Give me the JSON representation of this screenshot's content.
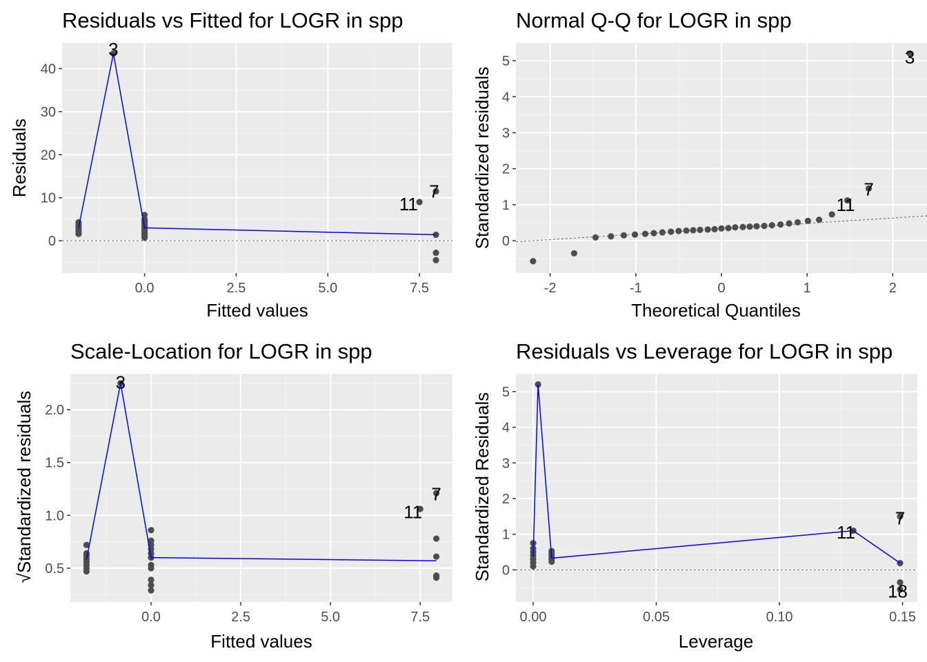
{
  "chart_data": [
    {
      "id": "p1",
      "type": "scatter",
      "title": "Residuals vs Fitted for LOGR in spp",
      "xlabel": "Fitted values",
      "ylabel": "Residuals",
      "xlim": [
        -2.25,
        8.4
      ],
      "ylim": [
        -7.5,
        46
      ],
      "xticks": [
        0,
        2.5,
        5,
        7.5
      ],
      "xtick_labels": [
        "0.0",
        "2.5",
        "5.0",
        "7.5"
      ],
      "yticks": [
        0,
        10,
        20,
        30,
        40
      ],
      "ytick_labels": [
        "0",
        "10",
        "20",
        "30",
        "40"
      ],
      "hline": 0,
      "grid": true,
      "points": [
        [
          -1.8,
          1.6
        ],
        [
          -1.8,
          2.2
        ],
        [
          -1.8,
          2.8
        ],
        [
          -1.8,
          3.3
        ],
        [
          -1.8,
          3.8
        ],
        [
          -1.8,
          4.3
        ],
        [
          -0.85,
          43.5
        ],
        [
          0.0,
          0.7
        ],
        [
          0.0,
          1.2
        ],
        [
          0.0,
          1.7
        ],
        [
          0.0,
          2.2
        ],
        [
          0.0,
          2.6
        ],
        [
          0.0,
          3.1
        ],
        [
          0.0,
          3.5
        ],
        [
          0.0,
          4.0
        ],
        [
          0.0,
          4.5
        ],
        [
          0.0,
          5.0
        ],
        [
          0.0,
          6.0
        ],
        [
          7.5,
          9.0
        ],
        [
          7.95,
          11.5
        ],
        [
          7.95,
          1.4
        ],
        [
          7.95,
          -2.8
        ],
        [
          7.95,
          -4.5
        ]
      ],
      "smooth": [
        [
          -1.8,
          3.0
        ],
        [
          -0.85,
          43.5
        ],
        [
          0.0,
          3.0
        ],
        [
          7.95,
          1.4
        ]
      ],
      "labels": [
        {
          "text": "3",
          "x": -0.85,
          "y": 44.5
        },
        {
          "text": "11",
          "x": 7.2,
          "y": 8.5
        },
        {
          "text": "7",
          "x": 7.9,
          "y": 11.5
        }
      ]
    },
    {
      "id": "p2",
      "type": "scatter",
      "title": "Normal Q-Q for LOGR in spp",
      "xlabel": "Theoretical Quantiles",
      "ylabel": "Standardized residuals",
      "xlim": [
        -2.4,
        2.4
      ],
      "ylim": [
        -0.9,
        5.5
      ],
      "xticks": [
        -2,
        -1,
        0,
        1,
        2
      ],
      "xtick_labels": [
        "-2",
        "-1",
        "0",
        "1",
        "2"
      ],
      "yticks": [
        0,
        1,
        2,
        3,
        4,
        5
      ],
      "ytick_labels": [
        "0",
        "1",
        "2",
        "3",
        "4",
        "5"
      ],
      "refline": [
        [
          -2.4,
          -0.03
        ],
        [
          2.4,
          0.69
        ]
      ],
      "grid": true,
      "points": [
        [
          -2.2,
          -0.57
        ],
        [
          -1.72,
          -0.35
        ],
        [
          -1.47,
          0.09
        ],
        [
          -1.29,
          0.12
        ],
        [
          -1.14,
          0.15
        ],
        [
          -1.01,
          0.17
        ],
        [
          -0.89,
          0.19
        ],
        [
          -0.79,
          0.21
        ],
        [
          -0.69,
          0.23
        ],
        [
          -0.59,
          0.25
        ],
        [
          -0.5,
          0.27
        ],
        [
          -0.41,
          0.28
        ],
        [
          -0.33,
          0.29
        ],
        [
          -0.25,
          0.3
        ],
        [
          -0.16,
          0.31
        ],
        [
          -0.08,
          0.32
        ],
        [
          0.0,
          0.34
        ],
        [
          0.08,
          0.35
        ],
        [
          0.16,
          0.37
        ],
        [
          0.25,
          0.38
        ],
        [
          0.33,
          0.39
        ],
        [
          0.41,
          0.4
        ],
        [
          0.5,
          0.41
        ],
        [
          0.59,
          0.43
        ],
        [
          0.69,
          0.45
        ],
        [
          0.79,
          0.48
        ],
        [
          0.89,
          0.51
        ],
        [
          1.01,
          0.55
        ],
        [
          1.14,
          0.58
        ],
        [
          1.29,
          0.73
        ],
        [
          1.47,
          1.12
        ],
        [
          1.72,
          1.45
        ],
        [
          2.2,
          5.2
        ]
      ],
      "labels": [
        {
          "text": "3",
          "x": 2.2,
          "y": 5.1
        },
        {
          "text": "11",
          "x": 1.45,
          "y": 1.0
        },
        {
          "text": "7",
          "x": 1.72,
          "y": 1.43
        }
      ]
    },
    {
      "id": "p3",
      "type": "scatter",
      "title": "Scale-Location for LOGR in spp",
      "xlabel": "Fitted values",
      "ylabel": "√Standardized residuals",
      "xlim": [
        -2.25,
        8.4
      ],
      "ylim": [
        0.18,
        2.34
      ],
      "xticks": [
        0,
        2.5,
        5,
        7.5
      ],
      "xtick_labels": [
        "0.0",
        "2.5",
        "5.0",
        "7.5"
      ],
      "yticks": [
        0.5,
        1.0,
        1.5,
        2.0
      ],
      "ytick_labels": [
        "0.5",
        "1.0",
        "1.5",
        "2.0"
      ],
      "grid": true,
      "points": [
        [
          -1.8,
          0.47
        ],
        [
          -1.8,
          0.5
        ],
        [
          -1.8,
          0.53
        ],
        [
          -1.8,
          0.56
        ],
        [
          -1.8,
          0.59
        ],
        [
          -1.8,
          0.62
        ],
        [
          -1.8,
          0.64
        ],
        [
          -1.8,
          0.72
        ],
        [
          -0.85,
          2.25
        ],
        [
          0.0,
          0.29
        ],
        [
          0.0,
          0.34
        ],
        [
          0.0,
          0.39
        ],
        [
          0.0,
          0.5
        ],
        [
          0.0,
          0.53
        ],
        [
          0.0,
          0.6
        ],
        [
          0.0,
          0.64
        ],
        [
          0.0,
          0.68
        ],
        [
          0.0,
          0.72
        ],
        [
          0.0,
          0.76
        ],
        [
          0.0,
          0.86
        ],
        [
          7.5,
          1.06
        ],
        [
          7.95,
          1.21
        ],
        [
          7.95,
          0.78
        ],
        [
          7.95,
          0.61
        ],
        [
          7.95,
          0.43
        ],
        [
          7.95,
          0.41
        ]
      ],
      "smooth": [
        [
          -1.8,
          0.58
        ],
        [
          -0.85,
          2.25
        ],
        [
          0.0,
          0.6
        ],
        [
          7.95,
          0.57
        ]
      ],
      "labels": [
        {
          "text": "3",
          "x": -0.85,
          "y": 2.26
        },
        {
          "text": "11",
          "x": 7.3,
          "y": 1.03
        },
        {
          "text": "7",
          "x": 7.95,
          "y": 1.2
        }
      ]
    },
    {
      "id": "p4",
      "type": "scatter",
      "title": "Residuals vs Leverage for LOGR in spp",
      "xlabel": "Leverage",
      "ylabel": "Standardized Residuals",
      "xlim": [
        -0.007,
        0.156
      ],
      "ylim": [
        -0.9,
        5.5
      ],
      "xticks": [
        0,
        0.05,
        0.1,
        0.15
      ],
      "xtick_labels": [
        "0.00",
        "0.05",
        "0.10",
        "0.15"
      ],
      "yticks": [
        0,
        1,
        2,
        3,
        4,
        5
      ],
      "ytick_labels": [
        "0",
        "1",
        "2",
        "3",
        "4",
        "5"
      ],
      "hline": 0,
      "grid": true,
      "points": [
        [
          0.0,
          0.1
        ],
        [
          0.0,
          0.2
        ],
        [
          0.0,
          0.3
        ],
        [
          0.0,
          0.4
        ],
        [
          0.0,
          0.5
        ],
        [
          0.0,
          0.6
        ],
        [
          0.0,
          0.75
        ],
        [
          0.002,
          5.2
        ],
        [
          0.0075,
          0.23
        ],
        [
          0.0075,
          0.3
        ],
        [
          0.0075,
          0.38
        ],
        [
          0.0075,
          0.45
        ],
        [
          0.0075,
          0.53
        ],
        [
          0.13,
          1.1
        ],
        [
          0.149,
          1.5
        ],
        [
          0.149,
          0.19
        ],
        [
          0.149,
          -0.35
        ],
        [
          0.149,
          -0.55
        ]
      ],
      "smooth": [
        [
          0.0,
          0.38
        ],
        [
          0.002,
          5.2
        ],
        [
          0.0075,
          0.33
        ],
        [
          0.13,
          1.1
        ],
        [
          0.149,
          0.19
        ]
      ],
      "labels": [
        {
          "text": "11",
          "x": 0.127,
          "y": 1.05
        },
        {
          "text": "7",
          "x": 0.149,
          "y": 1.45
        },
        {
          "text": "18",
          "x": 0.148,
          "y": -0.6
        }
      ]
    }
  ]
}
